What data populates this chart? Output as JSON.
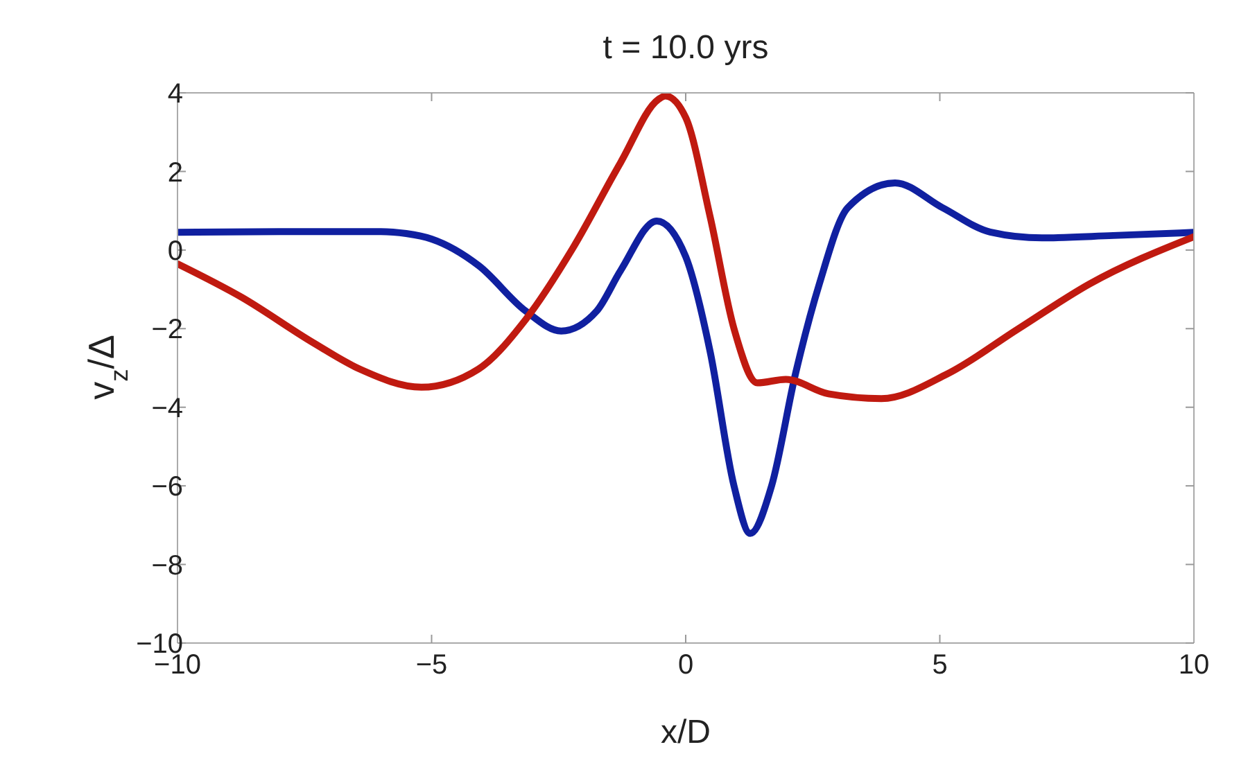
{
  "chart_data": {
    "type": "line",
    "title": "t = 10.0 yrs",
    "xlabel": "x/D",
    "ylabel": "v$_{z}$/Δ",
    "xlim": [
      -10,
      10
    ],
    "xticks": [
      -10,
      -5,
      0,
      5,
      10
    ],
    "ylim": [
      -10,
      4
    ],
    "yticks": [
      -10,
      -8,
      -6,
      -4,
      -2,
      0,
      2,
      4
    ],
    "marker": "none",
    "line_style": "solid",
    "series": [
      {
        "color": "#1020a0",
        "x": [
          -10,
          -8,
          -6,
          -5.5,
          -5,
          -4.07,
          -3.15,
          -2.45,
          -1.75,
          -1.28,
          -0.57,
          0,
          0.48,
          0.95,
          1.27,
          1.69,
          2.16,
          2.63,
          3.19,
          4.12,
          5.05,
          5.99,
          7.01,
          8.41,
          10
        ],
        "values": [
          0.45,
          0.47,
          0.47,
          0.42,
          0.28,
          -0.4,
          -1.55,
          -2.06,
          -1.55,
          -0.52,
          0.74,
          -0.17,
          -2.58,
          -6.0,
          -7.21,
          -6.0,
          -3.15,
          -0.86,
          1.08,
          1.71,
          1.08,
          0.46,
          0.31,
          0.37,
          0.45
        ]
      },
      {
        "color": "#c01a10",
        "x": [
          -10,
          -8.74,
          -7.34,
          -6.41,
          -5.2,
          -4.08,
          -3.15,
          -2.22,
          -1.28,
          -0.54,
          -0.4,
          0,
          0.48,
          0.95,
          1.41,
          1.97,
          2.81,
          3.85,
          5.15,
          6.55,
          7.95,
          10
        ],
        "values": [
          -0.35,
          -1.2,
          -2.35,
          -3.03,
          -3.49,
          -3.03,
          -1.77,
          0.05,
          2.23,
          3.83,
          3.92,
          3.37,
          0.85,
          -2.0,
          -3.38,
          -3.29,
          -3.66,
          -3.78,
          -3.15,
          -2.0,
          -0.86,
          0.34
        ]
      }
    ]
  }
}
